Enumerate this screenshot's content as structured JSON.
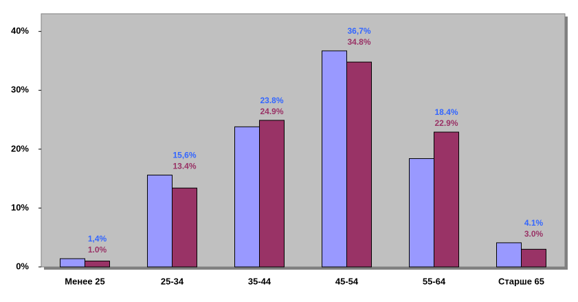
{
  "chart_data": {
    "type": "bar",
    "categories": [
      "Менее 25",
      "25-34",
      "35-44",
      "45-54",
      "55-64",
      "Старше 65"
    ],
    "series": [
      {
        "color": "#9999ff",
        "label_color": "#3366ff",
        "values": [
          1.4,
          15.6,
          23.8,
          36.7,
          18.4,
          4.1
        ],
        "value_labels": [
          "1,4%",
          "15,6%",
          "23.8%",
          "36,7%",
          "18.4%",
          "4.1%"
        ]
      },
      {
        "color": "#993366",
        "label_color": "#993366",
        "values": [
          1.0,
          13.4,
          24.9,
          34.8,
          22.9,
          3.0
        ],
        "value_labels": [
          "1.0%",
          "13.4%",
          "24.9%",
          "34.8%",
          "22.9%",
          "3.0%"
        ]
      }
    ],
    "ylim": [
      0,
      43
    ],
    "yticks": [
      {
        "value": 0,
        "label": "0%"
      },
      {
        "value": 10,
        "label": "10%"
      },
      {
        "value": 20,
        "label": "20%"
      },
      {
        "value": 30,
        "label": "30%"
      },
      {
        "value": 40,
        "label": "40%"
      }
    ],
    "plot_background": "#c0c0c0"
  }
}
